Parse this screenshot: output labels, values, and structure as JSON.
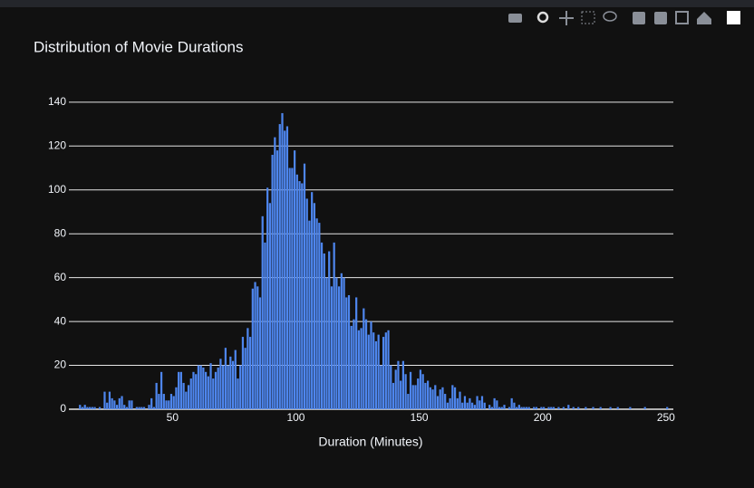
{
  "chart_data": {
    "type": "histogram",
    "title": "Distribution of Movie Durations",
    "x_label": "Duration (Minutes)",
    "color": "#4e86ee",
    "bins": [
      10,
      11,
      12,
      13,
      14,
      15,
      16,
      17,
      18,
      19,
      20,
      21,
      22,
      23,
      24,
      25,
      26,
      27,
      28,
      29,
      30,
      31,
      32,
      33,
      34,
      35,
      36,
      37,
      38,
      39,
      40,
      41,
      42,
      43,
      44,
      45,
      46,
      47,
      48,
      49,
      50,
      51,
      52,
      53,
      54,
      55,
      56,
      57,
      58,
      59,
      60,
      61,
      62,
      63,
      64,
      65,
      66,
      67,
      68,
      69,
      70,
      71,
      72,
      73,
      74,
      75,
      76,
      77,
      78,
      79,
      80,
      81,
      82,
      83,
      84,
      85,
      86,
      87,
      88,
      89,
      90,
      91,
      92,
      93,
      94,
      95,
      96,
      97,
      98,
      99,
      100,
      101,
      102,
      103,
      104,
      105,
      106,
      107,
      108,
      109,
      110,
      111,
      112,
      113,
      114,
      115,
      116,
      117,
      118,
      119,
      120,
      121,
      122,
      123,
      124,
      125,
      126,
      127,
      128,
      129,
      130,
      131,
      132,
      133,
      134,
      135,
      136,
      137,
      138,
      139,
      140,
      141,
      142,
      143,
      144,
      145,
      146,
      147,
      148,
      149,
      150,
      151,
      152,
      153,
      154,
      155,
      156,
      157,
      158,
      159,
      160,
      161,
      162,
      163,
      164,
      165,
      166,
      167,
      168,
      169,
      170,
      171,
      172,
      173,
      174,
      175,
      176,
      177,
      178,
      179,
      180,
      181,
      182,
      183,
      184,
      185,
      186,
      187,
      188,
      189,
      190,
      191,
      192,
      193,
      194,
      195,
      196,
      197,
      198,
      199,
      200,
      201,
      202,
      203,
      204,
      205,
      206,
      207,
      208,
      209,
      210,
      211,
      212,
      213,
      214,
      215,
      216,
      217,
      218,
      219,
      220,
      221,
      222,
      223,
      224,
      225,
      226,
      227,
      228,
      229,
      230,
      231,
      232,
      233,
      234,
      235,
      236,
      237,
      238,
      239,
      240,
      241,
      242,
      243,
      244,
      245,
      246,
      247,
      248,
      249,
      250,
      251
    ],
    "values": [
      0,
      0,
      2,
      1,
      2,
      1,
      1,
      1,
      1,
      0,
      1,
      0,
      8,
      3,
      8,
      5,
      4,
      2,
      5,
      6,
      2,
      1,
      4,
      4,
      0,
      1,
      1,
      1,
      1,
      0,
      2,
      5,
      1,
      12,
      7,
      17,
      7,
      4,
      4,
      7,
      6,
      10,
      17,
      17,
      12,
      8,
      11,
      14,
      17,
      16,
      20,
      20,
      19,
      17,
      15,
      21,
      14,
      17,
      19,
      23,
      20,
      28,
      20,
      24,
      22,
      27,
      14,
      20,
      33,
      28,
      37,
      33,
      55,
      58,
      56,
      51,
      88,
      76,
      101,
      94,
      116,
      124,
      118,
      130,
      135,
      127,
      129,
      110,
      110,
      118,
      107,
      104,
      103,
      112,
      96,
      86,
      99,
      94,
      87,
      85,
      76,
      71,
      60,
      72,
      56,
      76,
      60,
      56,
      62,
      60,
      51,
      52,
      38,
      41,
      51,
      36,
      37,
      46,
      41,
      34,
      40,
      35,
      31,
      34,
      20,
      33,
      35,
      36,
      20,
      12,
      18,
      22,
      13,
      22,
      16,
      7,
      17,
      11,
      11,
      14,
      18,
      16,
      12,
      13,
      10,
      9,
      11,
      6,
      9,
      10,
      7,
      3,
      5,
      11,
      10,
      5,
      8,
      3,
      6,
      3,
      5,
      3,
      2,
      6,
      4,
      6,
      3,
      0,
      2,
      1,
      5,
      4,
      1,
      1,
      2,
      0,
      1,
      5,
      3,
      1,
      2,
      1,
      1,
      1,
      1,
      0,
      1,
      1,
      0,
      1,
      1,
      0,
      1,
      1,
      1,
      0,
      1,
      0,
      1,
      0,
      2,
      0,
      1,
      0,
      1,
      0,
      0,
      1,
      0,
      0,
      1,
      0,
      0,
      1,
      0,
      0,
      0,
      1,
      0,
      0,
      1,
      0,
      0,
      0,
      0,
      1,
      0,
      0,
      0,
      0,
      0,
      1,
      0,
      0,
      0,
      0,
      0,
      0,
      0,
      0,
      1
    ],
    "xlim": [
      8,
      253
    ],
    "xticks": [
      50,
      100,
      150,
      200,
      250
    ],
    "ylim": [
      0,
      142
    ],
    "yticks": [
      0,
      20,
      40,
      60,
      80,
      100,
      120,
      140
    ],
    "grid": true
  }
}
